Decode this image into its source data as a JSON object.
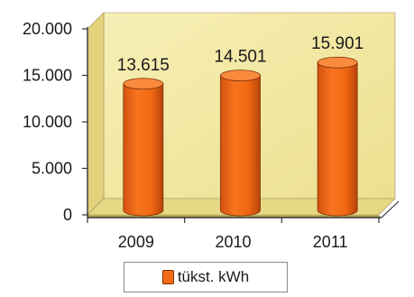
{
  "chart_data": {
    "type": "bar",
    "style": "3d-cylinder",
    "categories": [
      "2009",
      "2010",
      "2011"
    ],
    "series": [
      {
        "name": "tükst. kWh",
        "values": [
          13615,
          14501,
          15901
        ]
      }
    ],
    "data_labels": [
      "13.615",
      "14.501",
      "15.901"
    ],
    "y_tick_labels": [
      "0",
      "5.000",
      "10.000",
      "15.000",
      "20.000"
    ],
    "y_ticks": [
      0,
      5000,
      10000,
      15000,
      20000
    ],
    "ylim": [
      0,
      20000
    ],
    "grid": false,
    "legend_position": "bottom",
    "colors": {
      "bar": "#f36b16",
      "bar_dark": "#c9470a",
      "bar_top": "#f98a3e",
      "wall": "#f4e9a6",
      "floor": "#e7d885"
    }
  }
}
